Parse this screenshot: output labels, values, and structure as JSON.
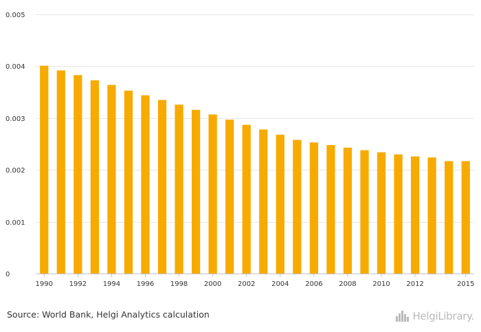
{
  "chart_data": {
    "type": "bar",
    "title": "",
    "xlabel": "",
    "ylabel": "",
    "categories": [
      "1990",
      "1991",
      "1992",
      "1993",
      "1994",
      "1995",
      "1996",
      "1997",
      "1998",
      "1999",
      "2000",
      "2001",
      "2002",
      "2003",
      "2004",
      "2005",
      "2006",
      "2007",
      "2008",
      "2009",
      "2010",
      "2011",
      "2012",
      "2013",
      "2014",
      "2015"
    ],
    "x_tick_labels": [
      "1990",
      "1992",
      "1994",
      "1996",
      "1998",
      "2000",
      "2002",
      "2004",
      "2006",
      "2008",
      "2010",
      "2012",
      "2015"
    ],
    "x_tick_categories": [
      "1990",
      "1992",
      "1994",
      "1996",
      "1998",
      "2000",
      "2002",
      "2004",
      "2006",
      "2008",
      "2010",
      "2012",
      "2015"
    ],
    "values": [
      0.00401,
      0.00392,
      0.00383,
      0.00373,
      0.00364,
      0.00353,
      0.00344,
      0.00335,
      0.00326,
      0.00316,
      0.00307,
      0.00297,
      0.00287,
      0.00278,
      0.00268,
      0.00258,
      0.00253,
      0.00248,
      0.00243,
      0.00238,
      0.00234,
      0.0023,
      0.00226,
      0.00224,
      0.00217,
      0.00217
    ],
    "ylim": [
      0,
      0.005
    ],
    "y_ticks": [
      0,
      0.001,
      0.002,
      0.003,
      0.004,
      0.005
    ],
    "y_tick_labels": [
      "0",
      "0.001",
      "0.002",
      "0.003",
      "0.004",
      "0.005"
    ],
    "bar_color": "#F7AB00",
    "grid": true,
    "grid_color": "#E6E6E6",
    "legend": "none"
  },
  "footer": {
    "source": "Source: World Bank, Helgi Analytics calculation",
    "logo_text": "HelgiLibrary."
  }
}
